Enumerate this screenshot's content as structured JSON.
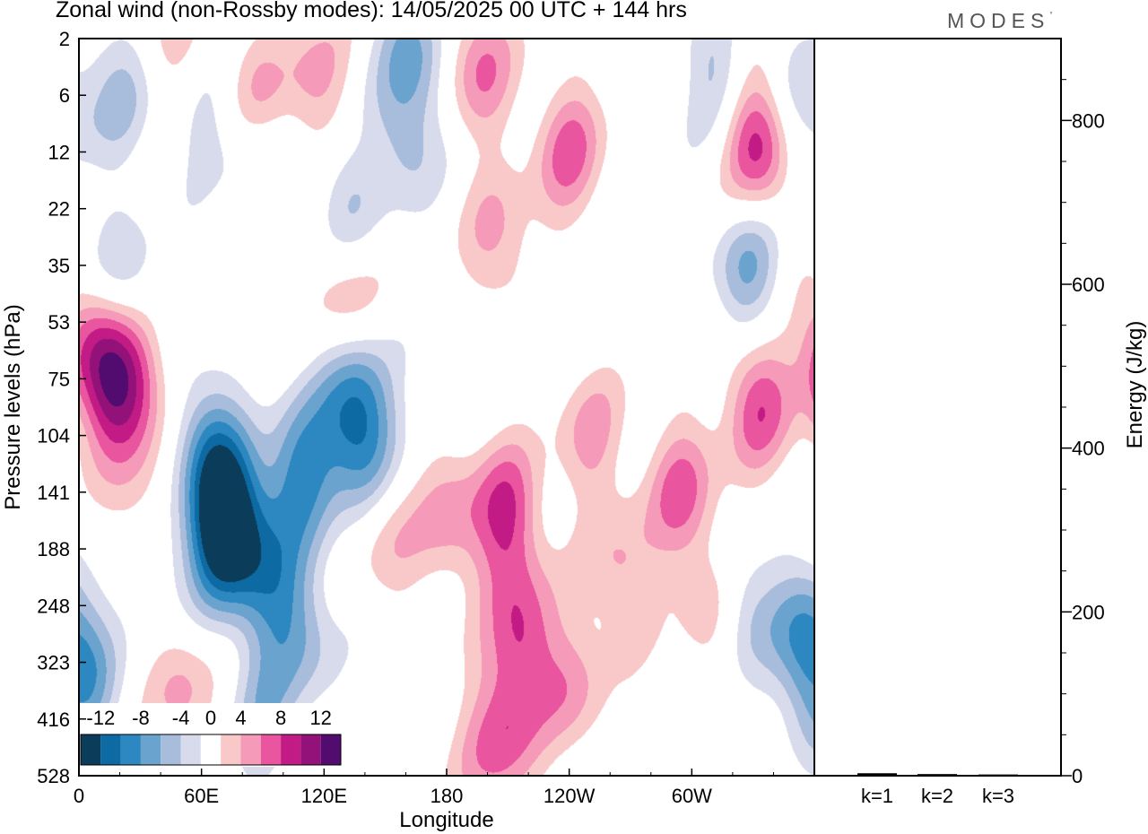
{
  "header": {
    "title": "Zonal wind (non-Rossby modes):  14/05/2025  00 UTC  + 144 hrs",
    "brand": "MODES"
  },
  "colors": {
    "neg_colors": [
      "#0b3d5a",
      "#0d6aa2",
      "#2d87c0",
      "#6aa3ce",
      "#a8bcdc",
      "#d8dbeb"
    ],
    "zero_color": "#ffffff",
    "pos_colors": [
      "#f9c9c9",
      "#f59ab8",
      "#e9559e",
      "#c31b86",
      "#93127a",
      "#520b6e"
    ]
  },
  "chart_data": [
    {
      "type": "heatmap",
      "title": "Zonal wind (non-Rossby modes):  14/05/2025  00 UTC  + 144 hrs",
      "xlabel": "Longitude",
      "ylabel": "Pressure levels (hPa)",
      "x_ticks": [
        "0",
        "60E",
        "120E",
        "180",
        "120W",
        "60W"
      ],
      "x_tick_values": [
        0,
        60,
        120,
        180,
        240,
        300
      ],
      "xlim": [
        0,
        360
      ],
      "y_levels": [
        "2",
        "6",
        "12",
        "22",
        "35",
        "53",
        "75",
        "104",
        "141",
        "188",
        "248",
        "323",
        "416",
        "528"
      ],
      "colorbar": {
        "labels": [
          "-12",
          "-8",
          "-4",
          "0",
          "4",
          "8",
          "12"
        ],
        "bounds": [
          -14,
          -12,
          -10,
          -8,
          -6,
          -4,
          -2,
          2,
          4,
          6,
          8,
          10,
          12,
          14
        ]
      },
      "positive_blobs": [
        {
          "lon": 87,
          "lev": 1.3,
          "val": 8.5
        },
        {
          "lon": 50,
          "lev": 0.4,
          "val": 4.5
        },
        {
          "lon": 116,
          "lev": 0.7,
          "val": 4.5
        },
        {
          "lon": 196,
          "lev": 0.5,
          "val": 6
        },
        {
          "lon": 240,
          "lev": 2,
          "val": 6.5
        },
        {
          "lon": 335,
          "lev": 2,
          "val": 6.5
        },
        {
          "lon": 330,
          "lev": 1.5,
          "val": 4.5
        },
        {
          "lon": 205,
          "lev": 3.6,
          "val": 4.5
        },
        {
          "lon": 130,
          "lev": 4.4,
          "val": 4.5
        },
        {
          "lon": 15,
          "lev": 6,
          "val": 8.5
        },
        {
          "lon": 28,
          "lev": 6,
          "val": 6
        },
        {
          "lon": 332,
          "lev": 6.4,
          "val": 7.5
        },
        {
          "lon": 209,
          "lev": 8.4,
          "val": 8
        },
        {
          "lon": 217,
          "lev": 10.5,
          "val": 7
        },
        {
          "lon": 211,
          "lev": 12,
          "val": 4.5
        },
        {
          "lon": 200,
          "lev": 12.7,
          "val": 4.3
        },
        {
          "lon": 295,
          "lev": 8,
          "val": 6.5
        },
        {
          "lon": 30,
          "lev": 8.4,
          "val": 5.5
        },
        {
          "lon": 50,
          "lev": 11.5,
          "val": 4.5
        },
        {
          "lon": 265,
          "lev": 9.5,
          "val": 4.5
        },
        {
          "lon": 182,
          "lev": 8.5,
          "val": 4.5
        },
        {
          "lon": 150,
          "lev": 8.6,
          "val": 4.5
        },
        {
          "lon": 250,
          "lev": 7,
          "val": 4.5
        },
        {
          "lon": 310,
          "lev": 10,
          "val": 4.5
        },
        {
          "lon": 242,
          "lev": 11.5,
          "val": 4.3
        },
        {
          "lon": 5,
          "lev": 5.3,
          "val": 4.5
        }
      ],
      "negative_blobs": [
        {
          "lon": 72,
          "lev": 8.3,
          "val": -11.5
        },
        {
          "lon": 67,
          "lev": 9,
          "val": -6
        },
        {
          "lon": 85,
          "lev": 9,
          "val": -4.5
        },
        {
          "lon": 86,
          "lev": 1.7,
          "val": -7
        },
        {
          "lon": 130,
          "lev": 3,
          "val": -4.5
        },
        {
          "lon": 163,
          "lev": 0.2,
          "val": -6
        },
        {
          "lon": 313,
          "lev": 0.6,
          "val": -5
        },
        {
          "lon": 323,
          "lev": 10,
          "val": -5
        },
        {
          "lon": 355,
          "lev": 10.5,
          "val": -7
        },
        {
          "lon": 22,
          "lev": 4.4,
          "val": -5
        },
        {
          "lon": 95,
          "lev": 10,
          "val": -4.5
        },
        {
          "lon": 140,
          "lev": 6.4,
          "val": -4.5
        },
        {
          "lon": 140,
          "lev": 7.5,
          "val": -5.5
        },
        {
          "lon": 106,
          "lev": 8,
          "val": -5
        },
        {
          "lon": 2,
          "lev": 11.5,
          "val": -5
        },
        {
          "lon": 328,
          "lev": 4.1,
          "val": -6.5
        },
        {
          "lon": 62,
          "lev": 7,
          "val": -6
        },
        {
          "lon": 18,
          "lev": 0.9,
          "val": -4.5
        },
        {
          "lon": 160,
          "lev": 1.8,
          "val": -4.5
        },
        {
          "lon": 57,
          "lev": 1.2,
          "val": -4.5
        },
        {
          "lon": 110,
          "lev": 10.5,
          "val": -4.5
        },
        {
          "lon": 35,
          "lev": 9,
          "val": -4.5
        },
        {
          "lon": 112,
          "lev": 7.3,
          "val": -4.5
        },
        {
          "lon": 90,
          "lev": 12,
          "val": -4.5
        },
        {
          "lon": 350,
          "lev": 1.5,
          "val": -4.5
        },
        {
          "lon": 132,
          "lev": 6.5,
          "val": -4.5
        }
      ]
    },
    {
      "type": "bar",
      "ylabel": "Energy (J/kg)",
      "categories": [
        "k=1",
        "k=2",
        "k=3"
      ],
      "values": [
        3,
        2,
        1.5
      ],
      "ylim": [
        0,
        900
      ],
      "y_ticks": [
        "0",
        "200",
        "400",
        "600",
        "800"
      ],
      "y_tick_values": [
        0,
        200,
        400,
        600,
        800
      ],
      "y_minor_step": 50
    }
  ]
}
